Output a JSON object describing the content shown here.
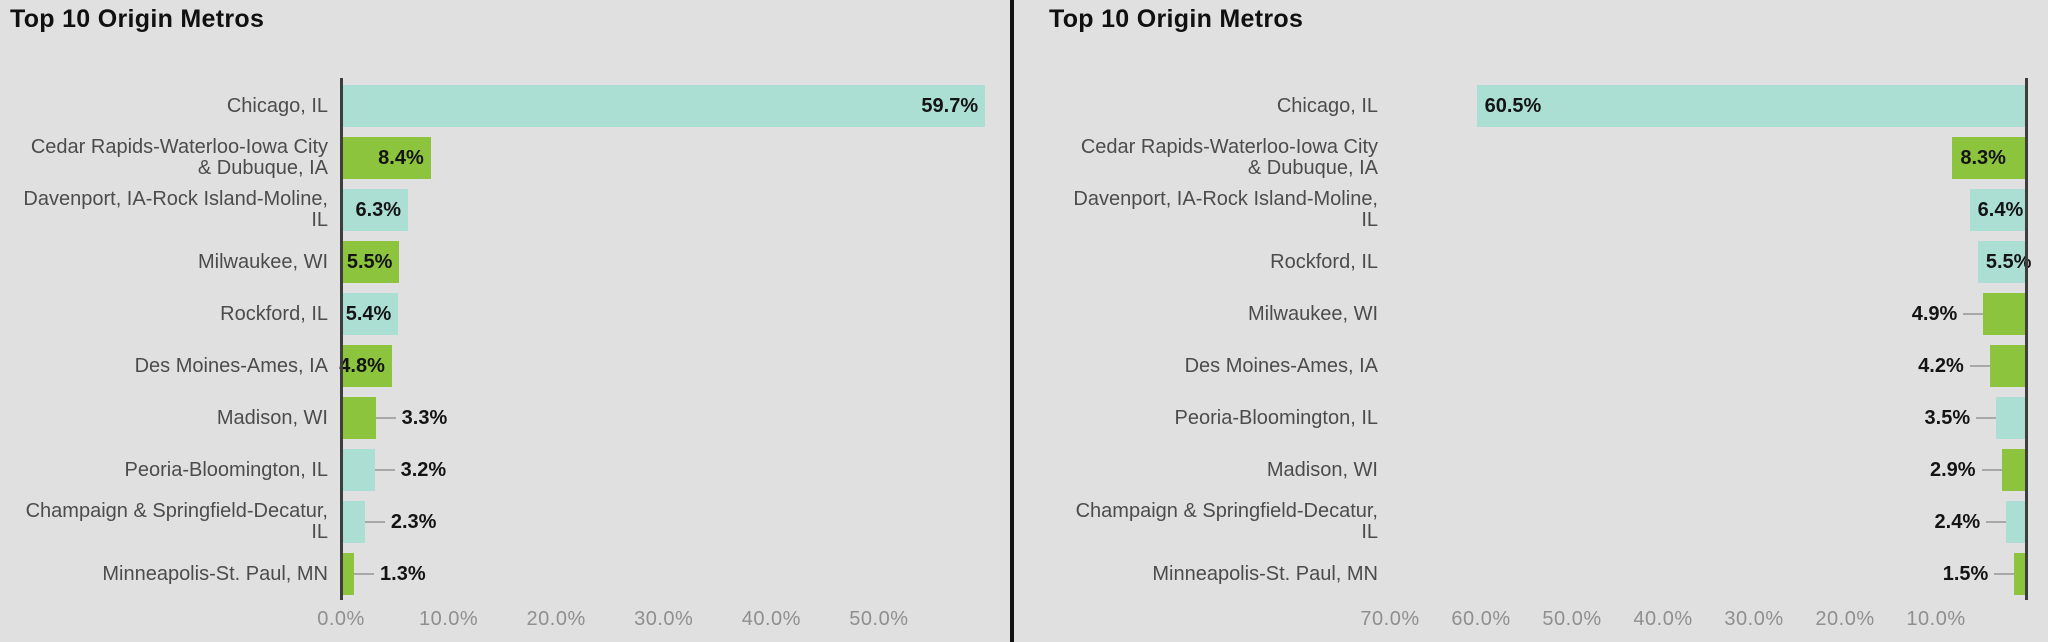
{
  "colors": {
    "background": "#e0e0e0",
    "illinois_metro_bar": "#abdfd4",
    "out_of_state_metro_bar": "#8cc43e",
    "axis_line": "#3d3d3d",
    "panel_divider": "#121212",
    "tick_text": "#8f8f8f",
    "category_text": "#4c4c4c",
    "value_text": "#141414",
    "leader_line": "#a8a8a8"
  },
  "chart_data": [
    {
      "type": "bar",
      "orientation": "horizontal",
      "title": "Top 10 Origin Metros",
      "legend": null,
      "grid": false,
      "value_axis": {
        "min": 0,
        "max": 62,
        "reversed": false,
        "tick_values": [
          0,
          10,
          20,
          30,
          40,
          50
        ],
        "tick_labels": [
          "0.0%",
          "10.0%",
          "20.0%",
          "30.0%",
          "40.0%",
          "50.0%"
        ]
      },
      "bars": [
        {
          "category": "Chicago, IL",
          "category_lines": [
            "Chicago, IL"
          ],
          "value": 59.7,
          "label": "59.7%",
          "color": "#abdfd4",
          "label_inside": true
        },
        {
          "category": "Cedar Rapids-Waterloo-Iowa City & Dubuque, IA",
          "category_lines": [
            "Cedar Rapids-Waterloo-Iowa City",
            "& Dubuque, IA"
          ],
          "value": 8.4,
          "label": "8.4%",
          "color": "#8cc43e",
          "label_inside": true
        },
        {
          "category": "Davenport, IA-Rock Island-Moline, IL",
          "category_lines": [
            "Davenport, IA-Rock Island-Moline,",
            "IL"
          ],
          "value": 6.3,
          "label": "6.3%",
          "color": "#abdfd4",
          "label_inside": true
        },
        {
          "category": "Milwaukee, WI",
          "category_lines": [
            "Milwaukee, WI"
          ],
          "value": 5.5,
          "label": "5.5%",
          "color": "#8cc43e",
          "label_inside": true
        },
        {
          "category": "Rockford, IL",
          "category_lines": [
            "Rockford, IL"
          ],
          "value": 5.4,
          "label": "5.4%",
          "color": "#abdfd4",
          "label_inside": true
        },
        {
          "category": "Des Moines-Ames, IA",
          "category_lines": [
            "Des Moines-Ames, IA"
          ],
          "value": 4.8,
          "label": "4.8%",
          "color": "#8cc43e",
          "label_inside": true
        },
        {
          "category": "Madison, WI",
          "category_lines": [
            "Madison, WI"
          ],
          "value": 3.3,
          "label": "3.3%",
          "color": "#8cc43e",
          "label_inside": false
        },
        {
          "category": "Peoria-Bloomington, IL",
          "category_lines": [
            "Peoria-Bloomington, IL"
          ],
          "value": 3.2,
          "label": "3.2%",
          "color": "#abdfd4",
          "label_inside": false
        },
        {
          "category": "Champaign & Springfield-Decatur, IL",
          "category_lines": [
            "Champaign & Springfield-Decatur,",
            "IL"
          ],
          "value": 2.3,
          "label": "2.3%",
          "color": "#abdfd4",
          "label_inside": false
        },
        {
          "category": "Minneapolis-St. Paul, MN",
          "category_lines": [
            "Minneapolis-St. Paul, MN"
          ],
          "value": 1.3,
          "label": "1.3%",
          "color": "#8cc43e",
          "label_inside": false
        }
      ]
    },
    {
      "type": "bar",
      "orientation": "horizontal",
      "title": "Top 10 Origin Metros",
      "legend": null,
      "grid": false,
      "value_axis": {
        "min": 0,
        "max": 70,
        "reversed": true,
        "tick_values": [
          70,
          60,
          50,
          40,
          30,
          20,
          10
        ],
        "tick_labels": [
          "70.0%",
          "60.0%",
          "50.0%",
          "40.0%",
          "30.0%",
          "20.0%",
          "10.0%"
        ]
      },
      "bars": [
        {
          "category": "Chicago, IL",
          "category_lines": [
            "Chicago, IL"
          ],
          "value": 60.5,
          "label": "60.5%",
          "color": "#abdfd4",
          "label_inside": true
        },
        {
          "category": "Cedar Rapids-Waterloo-Iowa City & Dubuque, IA",
          "category_lines": [
            "Cedar Rapids-Waterloo-Iowa City",
            "& Dubuque, IA"
          ],
          "value": 8.3,
          "label": "8.3%",
          "color": "#8cc43e",
          "label_inside": true
        },
        {
          "category": "Davenport, IA-Rock Island-Moline, IL",
          "category_lines": [
            "Davenport, IA-Rock Island-Moline,",
            "IL"
          ],
          "value": 6.4,
          "label": "6.4%",
          "color": "#abdfd4",
          "label_inside": true
        },
        {
          "category": "Rockford, IL",
          "category_lines": [
            "Rockford, IL"
          ],
          "value": 5.5,
          "label": "5.5%",
          "color": "#abdfd4",
          "label_inside": true
        },
        {
          "category": "Milwaukee, WI",
          "category_lines": [
            "Milwaukee, WI"
          ],
          "value": 4.9,
          "label": "4.9%",
          "color": "#8cc43e",
          "label_inside": false
        },
        {
          "category": "Des Moines-Ames, IA",
          "category_lines": [
            "Des Moines-Ames, IA"
          ],
          "value": 4.2,
          "label": "4.2%",
          "color": "#8cc43e",
          "label_inside": false
        },
        {
          "category": "Peoria-Bloomington, IL",
          "category_lines": [
            "Peoria-Bloomington, IL"
          ],
          "value": 3.5,
          "label": "3.5%",
          "color": "#abdfd4",
          "label_inside": false
        },
        {
          "category": "Madison, WI",
          "category_lines": [
            "Madison, WI"
          ],
          "value": 2.9,
          "label": "2.9%",
          "color": "#8cc43e",
          "label_inside": false
        },
        {
          "category": "Champaign & Springfield-Decatur, IL",
          "category_lines": [
            "Champaign & Springfield-Decatur,",
            "IL"
          ],
          "value": 2.4,
          "label": "2.4%",
          "color": "#abdfd4",
          "label_inside": false
        },
        {
          "category": "Minneapolis-St. Paul, MN",
          "category_lines": [
            "Minneapolis-St. Paul, MN"
          ],
          "value": 1.5,
          "label": "1.5%",
          "color": "#8cc43e",
          "label_inside": false
        }
      ]
    }
  ]
}
